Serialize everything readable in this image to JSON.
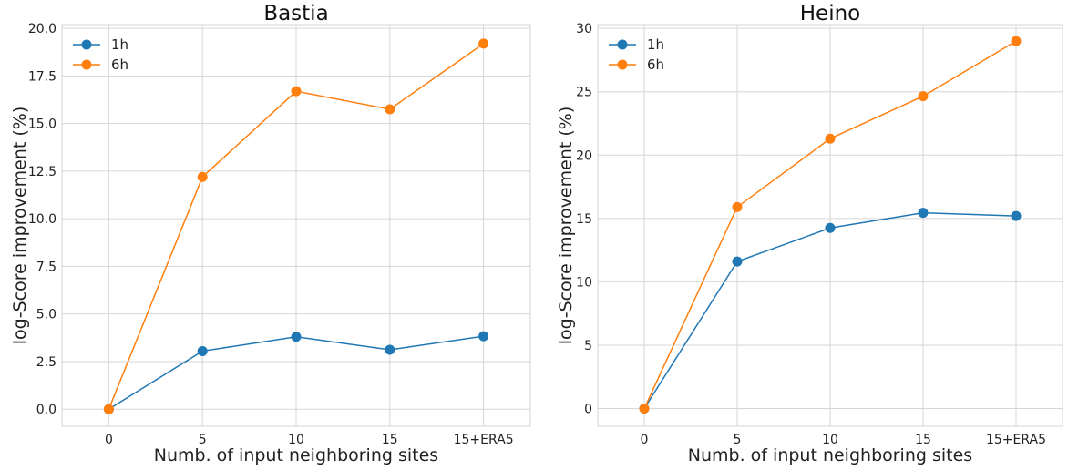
{
  "chart_data": [
    {
      "type": "line",
      "title": "Bastia",
      "xlabel": "Numb. of input neighboring sites",
      "ylabel": "log-Score improvement (%)",
      "categories": [
        "0",
        "5",
        "10",
        "15",
        "15+ERA5"
      ],
      "ylim": [
        -0.9,
        20.2
      ],
      "yticks": [
        "0.0",
        "2.5",
        "5.0",
        "7.5",
        "10.0",
        "12.5",
        "15.0",
        "17.5",
        "20.0"
      ],
      "ytick_values": [
        0,
        2.5,
        5,
        7.5,
        10,
        12.5,
        15,
        17.5,
        20
      ],
      "grid": true,
      "legend": "top-left",
      "series": [
        {
          "name": "1h",
          "color": "#1f77b4",
          "values": [
            0.0,
            3.05,
            3.8,
            3.12,
            3.83
          ]
        },
        {
          "name": "6h",
          "color": "#ff7f0e",
          "values": [
            0.0,
            12.2,
            16.7,
            15.75,
            19.2
          ]
        }
      ]
    },
    {
      "type": "line",
      "title": "Heino",
      "xlabel": "Numb. of input neighboring sites",
      "ylabel": "log-Score improvement (%)",
      "categories": [
        "0",
        "5",
        "10",
        "15",
        "15+ERA5"
      ],
      "ylim": [
        -1.4,
        30.3
      ],
      "yticks": [
        "0",
        "5",
        "10",
        "15",
        "20",
        "25",
        "30"
      ],
      "ytick_values": [
        0,
        5,
        10,
        15,
        20,
        25,
        30
      ],
      "grid": true,
      "legend": "top-left",
      "series": [
        {
          "name": "1h",
          "color": "#1f77b4",
          "values": [
            0.0,
            11.6,
            14.25,
            15.45,
            15.2
          ]
        },
        {
          "name": "6h",
          "color": "#ff7f0e",
          "values": [
            0.0,
            15.9,
            21.3,
            24.65,
            29.0
          ]
        }
      ]
    }
  ]
}
